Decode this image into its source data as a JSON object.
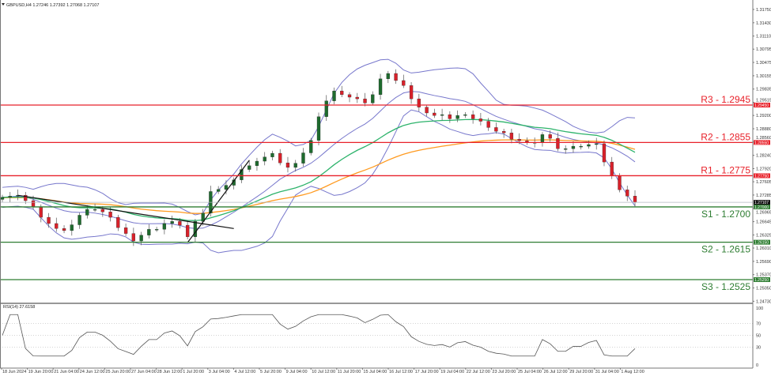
{
  "header": {
    "symbol_info": "GBPUSD,H4  1.27246 1.27392 1.27068 1.27107"
  },
  "rsi_label": "RSI(14) 27.6158",
  "current_price_tag": "1.27107",
  "colors": {
    "resistance": "#e8212a",
    "support": "#2e7d32",
    "bull": "#1e6b2e",
    "bear": "#d8212a",
    "bollinger": "#7777cc",
    "ma_fast": "#2db36b",
    "ma_slow": "#ff9a1f",
    "rsi": "#555555"
  },
  "chart_data": {
    "type": "candlestick",
    "symbol": "GBPUSD",
    "timeframe": "H4",
    "ylim": [
      1.2473,
      1.3175
    ],
    "price_ticks": [
      "1.31750",
      "1.31430",
      "1.31110",
      "1.30795",
      "1.30475",
      "1.30155",
      "1.29835",
      "1.29515",
      "1.29200",
      "1.28880",
      "1.28560",
      "1.28240",
      "1.27920",
      "1.27605",
      "1.27285",
      "1.26965",
      "1.26645",
      "1.26325",
      "1.26010",
      "1.25690",
      "1.25370",
      "1.25050",
      "1.24730"
    ],
    "time_ticks": [
      "18 Jun 2024",
      "19 Jun 20:00",
      "21 Jun 04:00",
      "24 Jun 12:00",
      "25 Jun 20:00",
      "27 Jun 04:00",
      "28 Jun 12:00",
      "1 Jul 20:00",
      "3 Jul 04:00",
      "4 Jul 12:00",
      "5 Jul 20:00",
      "9 Jul 04:00",
      "10 Jul 12:00",
      "11 Jul 20:00",
      "15 Jul 04:00",
      "16 Jul 12:00",
      "17 Jul 20:00",
      "19 Jul 04:00",
      "22 Jul 12:00",
      "23 Jul 20:00",
      "25 Jul 04:00",
      "26 Jul 12:00",
      "29 Jul 20:00",
      "31 Jul 04:00",
      "1 Aug 12:00"
    ],
    "first_open": 1.2718,
    "closes": [
      1.2723,
      1.2726,
      1.2728,
      1.2715,
      1.27,
      1.2675,
      1.266,
      1.2648,
      1.2643,
      1.2657,
      1.268,
      1.2694,
      1.2694,
      1.2688,
      1.2675,
      1.265,
      1.2636,
      1.2618,
      1.2632,
      1.2646,
      1.2646,
      1.266,
      1.2665,
      1.2656,
      1.2628,
      1.2665,
      1.2685,
      1.2737,
      1.2742,
      1.2752,
      1.2765,
      1.279,
      1.2799,
      1.281,
      1.282,
      1.2829,
      1.2806,
      1.2795,
      1.2805,
      1.283,
      1.286,
      1.2917,
      1.2955,
      1.2979,
      1.297,
      1.2964,
      1.296,
      1.295,
      1.297,
      1.3008,
      1.3021,
      1.3004,
      1.2992,
      1.296,
      1.294,
      1.2926,
      1.292,
      1.2922,
      1.2912,
      1.292,
      1.2922,
      1.2912,
      1.2906,
      1.2891,
      1.2882,
      1.2878,
      1.2863,
      1.2859,
      1.2855,
      1.2855,
      1.2874,
      1.2865,
      1.284,
      1.284,
      1.2846,
      1.2846,
      1.285,
      1.2852,
      1.2808,
      1.2775,
      1.2741,
      1.2726,
      1.2711
    ],
    "levels": [
      {
        "label": "R3 - 1.2945",
        "price": 1.2945,
        "tag": "1.29450",
        "kind": "resistance"
      },
      {
        "label": "R2 - 1.2855",
        "price": 1.2855,
        "tag": "1.28550",
        "kind": "resistance"
      },
      {
        "label": "R1 - 1.2775",
        "price": 1.2775,
        "tag": "1.27750",
        "kind": "resistance"
      },
      {
        "label": "S1 - 1.2700",
        "price": 1.27,
        "tag": "1.27000",
        "kind": "support"
      },
      {
        "label": "S2 - 1.2615",
        "price": 1.2615,
        "tag": "1.26150",
        "kind": "support"
      },
      {
        "label": "S3 - 1.2525",
        "price": 1.2525,
        "tag": "1.25250",
        "kind": "support"
      }
    ],
    "trendlines": [
      {
        "from": {
          "index": 2,
          "price": 1.2728
        },
        "to": {
          "index": 30,
          "price": 1.2648
        }
      },
      {
        "from": {
          "index": 24,
          "price": 1.2614
        },
        "to": {
          "index": 32,
          "price": 1.2812
        }
      }
    ],
    "indicators": [
      "Bollinger Bands",
      "Moving Average (fast)",
      "Moving Average (slow)",
      "RSI(14)"
    ],
    "rsi": {
      "last": 27.6158,
      "levels": [
        70,
        50,
        30
      ],
      "ylim": [
        0,
        100
      ],
      "ticks": [
        "100",
        "70",
        "50",
        "30",
        "0"
      ]
    }
  }
}
